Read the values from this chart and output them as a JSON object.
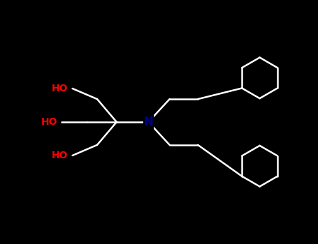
{
  "bg_color": "#000000",
  "bond_color": "#ffffff",
  "N_color": "#00008B",
  "O_color": "#ff0000",
  "bond_width": 1.8,
  "font_size": 10,
  "hex_r": 0.58,
  "xlim": [
    -3.8,
    5.2
  ],
  "ylim": [
    -2.8,
    2.8
  ]
}
